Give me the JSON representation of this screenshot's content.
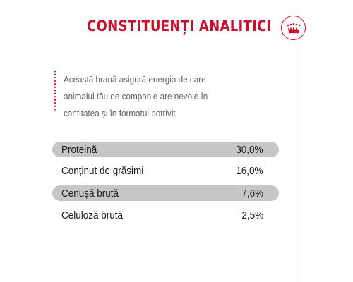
{
  "header": {
    "title": "CONSTITUENȚI ANALITICI"
  },
  "logo": {
    "icon": "crown-icon",
    "color": "#c8102e"
  },
  "description": {
    "text": "Această hrană asigură energia de care animalul tău de companie are nevoie în cantitatea și în formatul potrivit"
  },
  "constituents": [
    {
      "name": "Proteină",
      "value": "30,0%"
    },
    {
      "name": "Conținut de grăsimi",
      "value": "16,0%"
    },
    {
      "name": "Cenușă brută",
      "value": "7,6%"
    },
    {
      "name": "Celuloză brută",
      "value": "2,5%"
    }
  ],
  "colors": {
    "accent": "#c8102e",
    "row_shaded": "#c6c6c6",
    "text": "#1a1a1a",
    "muted_text": "#606060"
  }
}
